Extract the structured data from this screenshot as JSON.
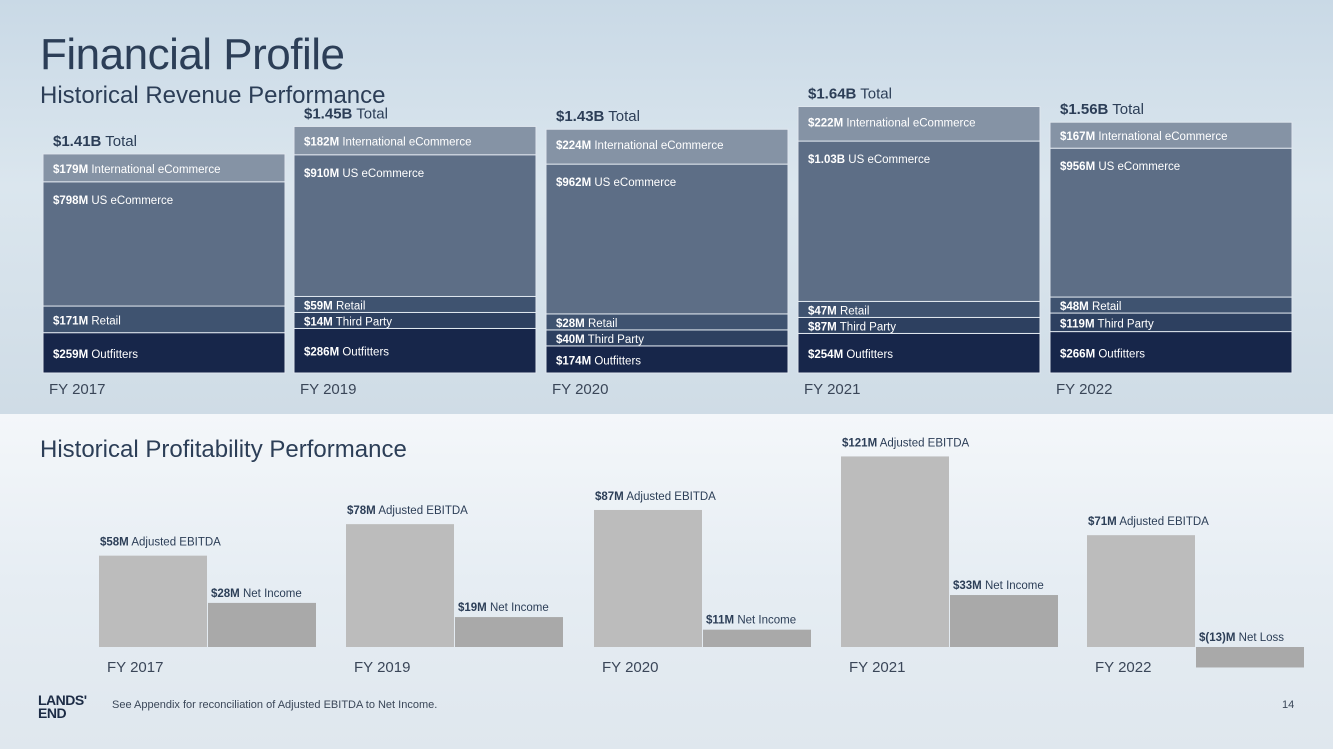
{
  "title": "Financial Profile",
  "subtitle_revenue": "Historical Revenue Performance",
  "subtitle_profit": "Historical Profitability Performance",
  "footnote": "See Appendix for reconciliation  of Adjusted EBITDA to Net Income.",
  "page_number": "14",
  "logo": {
    "line1": "LANDS'",
    "line2": "END"
  },
  "colors": {
    "intl": "#8593a5",
    "us": "#5d6e86",
    "retail": "#3f5370",
    "thirdparty": "#2d4060",
    "outfitters": "#17264a",
    "ebitda": "#bcbcbc",
    "netincome": "#a9a9a9"
  },
  "chart_data": [
    {
      "type": "bar",
      "stacked": true,
      "title": "Historical Revenue Performance",
      "categories": [
        "FY 2017",
        "FY 2019",
        "FY 2020",
        "FY 2021",
        "FY 2022"
      ],
      "totals": [
        {
          "bold": "$1.41B",
          "rest": " Total"
        },
        {
          "bold": "$1.45B",
          "rest": " Total"
        },
        {
          "bold": "$1.43B",
          "rest": " Total"
        },
        {
          "bold": "$1.64B",
          "rest": " Total"
        },
        {
          "bold": "$1.56B",
          "rest": " Total"
        }
      ],
      "unit": "$M",
      "series": [
        {
          "key": "outfitters",
          "name": "Outfitters",
          "values": [
            259,
            286,
            174,
            254,
            266
          ],
          "labels": [
            "$259M",
            "$286M",
            "$174M",
            "$254M",
            "$266M"
          ]
        },
        {
          "key": "thirdparty",
          "name": "Third Party",
          "values": [
            null,
            14,
            40,
            87,
            119
          ],
          "labels": [
            null,
            "$14M",
            "$40M",
            "$87M",
            "$119M"
          ]
        },
        {
          "key": "retail",
          "name": "Retail",
          "values": [
            171,
            59,
            28,
            47,
            48
          ],
          "labels": [
            "$171M",
            "$59M",
            "$28M",
            "$47M",
            "$48M"
          ]
        },
        {
          "key": "us",
          "name": "US eCommerce",
          "values": [
            798,
            910,
            962,
            1030,
            956
          ],
          "labels": [
            "$798M",
            "$910M",
            "$962M",
            "$1.03B",
            "$956M"
          ]
        },
        {
          "key": "intl",
          "name": "International  eCommerce",
          "values": [
            179,
            182,
            224,
            222,
            167
          ],
          "labels": [
            "$179M",
            "$182M",
            "$224M",
            "$222M",
            "$167M"
          ]
        }
      ]
    },
    {
      "type": "bar",
      "title": "Historical Profitability Performance",
      "categories": [
        "FY 2017",
        "FY 2019",
        "FY 2020",
        "FY 2021",
        "FY 2022"
      ],
      "unit": "$M",
      "series": [
        {
          "key": "ebitda",
          "name": "Adjusted EBITDA",
          "values": [
            58,
            78,
            87,
            121,
            71
          ],
          "labels": [
            "$58M",
            "$78M",
            "$87M",
            "$121M",
            "$71M"
          ]
        },
        {
          "key": "netincome",
          "name": "Net Income",
          "values": [
            28,
            19,
            11,
            33,
            -13
          ],
          "labels": [
            "$28M",
            "$19M",
            "$11M",
            "$33M",
            "$(13)M"
          ],
          "names": [
            "Net Income",
            "Net Income",
            "Net Income",
            "Net Income",
            "Net Loss"
          ]
        }
      ]
    }
  ]
}
